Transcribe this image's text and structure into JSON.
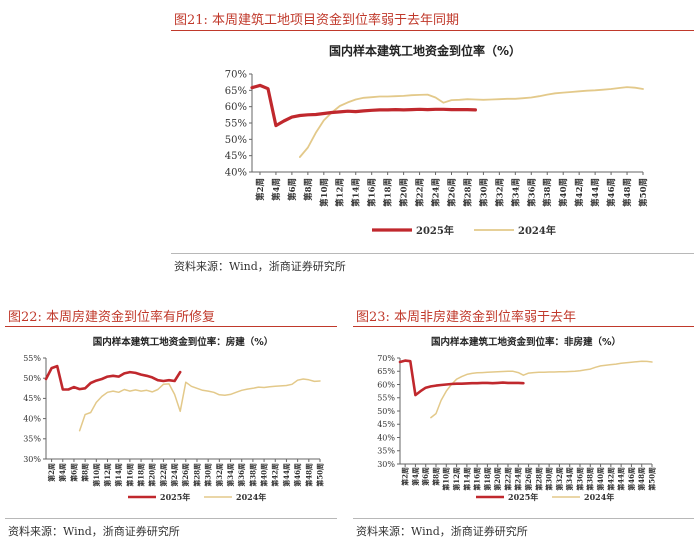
{
  "figures": [
    {
      "title": "图21:   本周建筑工地项目资金到位率弱于去年同期",
      "source": "资料来源：Wind，浙商证券研究所"
    },
    {
      "title": "图22:   本周房建资金到位率有所修复",
      "source": "资料来源：Wind，浙商证券研究所"
    },
    {
      "title": "图23:   本周非房建资金到位率弱于去年",
      "source": "资料来源：Wind，浙商证券研究所"
    }
  ],
  "colors": {
    "series_2025": "#c0282d",
    "series_2024": "#e3c98a",
    "title_red": "#c0392b"
  },
  "chart_data": [
    {
      "type": "line",
      "title": "国内样本建筑工地资金到位率（%）",
      "x": [
        "第1周",
        "第2周",
        "第3周",
        "第4周",
        "第5周",
        "第6周",
        "第7周",
        "第8周",
        "第9周",
        "第10周",
        "第11周",
        "第12周",
        "第13周",
        "第14周",
        "第15周",
        "第16周",
        "第17周",
        "第18周",
        "第19周",
        "第20周",
        "第21周",
        "第22周",
        "第23周",
        "第24周",
        "第25周",
        "第26周",
        "第27周",
        "第28周",
        "第29周",
        "第30周",
        "第31周",
        "第32周",
        "第33周",
        "第34周",
        "第35周",
        "第36周",
        "第37周",
        "第38周",
        "第39周",
        "第40周",
        "第41周",
        "第42周",
        "第43周",
        "第44周",
        "第45周",
        "第46周",
        "第47周",
        "第48周",
        "第49周",
        "第50周"
      ],
      "x_tick_labels": [
        "第2周",
        "第4周",
        "第6周",
        "第8周",
        "第10周",
        "第12周",
        "第14周",
        "第16周",
        "第18周",
        "第20周",
        "第22周",
        "第24周",
        "第26周",
        "第28周",
        "第30周",
        "第32周",
        "第34周",
        "第36周",
        "第38周",
        "第40周",
        "第42周",
        "第44周",
        "第46周",
        "第48周",
        "第50周"
      ],
      "y_ticks": [
        "40%",
        "45%",
        "50%",
        "55%",
        "60%",
        "65%",
        "70%"
      ],
      "ylim": [
        40,
        70
      ],
      "series": [
        {
          "name": "2025年",
          "values": [
            65.8,
            66.5,
            65.5,
            54.2,
            55.6,
            56.8,
            57.3,
            57.5,
            57.6,
            57.9,
            58.2,
            58.4,
            58.6,
            58.5,
            58.7,
            58.9,
            59.0,
            59.0,
            59.1,
            59.0,
            59.1,
            59.2,
            59.1,
            59.2,
            59.2,
            59.1,
            59.1,
            59.1,
            59.0,
            null,
            null,
            null,
            null,
            null,
            null,
            null,
            null,
            null,
            null,
            null,
            null,
            null,
            null,
            null,
            null,
            null,
            null,
            null,
            null,
            null
          ]
        },
        {
          "name": "2024年",
          "values": [
            null,
            null,
            null,
            null,
            null,
            null,
            44.6,
            47.5,
            52.0,
            55.8,
            58.2,
            60.2,
            61.3,
            62.2,
            62.7,
            62.9,
            63.1,
            63.1,
            63.2,
            63.3,
            63.5,
            63.6,
            63.7,
            62.8,
            61.2,
            62.0,
            62.1,
            62.3,
            62.2,
            62.1,
            62.2,
            62.3,
            62.4,
            62.4,
            62.6,
            62.8,
            63.2,
            63.7,
            64.1,
            64.3,
            64.5,
            64.7,
            64.9,
            65.0,
            65.2,
            65.4,
            65.7,
            66.0,
            65.8,
            65.4
          ]
        }
      ],
      "grid": false,
      "legend": "bottom"
    },
    {
      "type": "line",
      "title": "国内样本建筑工地资金到位率：房建（%）",
      "x": [
        "第1周",
        "第2周",
        "第3周",
        "第4周",
        "第5周",
        "第6周",
        "第7周",
        "第8周",
        "第9周",
        "第10周",
        "第11周",
        "第12周",
        "第13周",
        "第14周",
        "第15周",
        "第16周",
        "第17周",
        "第18周",
        "第19周",
        "第20周",
        "第21周",
        "第22周",
        "第23周",
        "第24周",
        "第25周",
        "第26周",
        "第27周",
        "第28周",
        "第29周",
        "第30周",
        "第31周",
        "第32周",
        "第33周",
        "第34周",
        "第35周",
        "第36周",
        "第37周",
        "第38周",
        "第39周",
        "第40周",
        "第41周",
        "第42周",
        "第43周",
        "第44周",
        "第45周",
        "第46周",
        "第47周",
        "第48周",
        "第49周",
        "第50周"
      ],
      "x_tick_labels": [
        "第2周",
        "第4周",
        "第6周",
        "第8周",
        "第10周",
        "第12周",
        "第14周",
        "第16周",
        "第18周",
        "第20周",
        "第22周",
        "第24周",
        "第26周",
        "第28周",
        "第30周",
        "第32周",
        "第34周",
        "第36周",
        "第38周",
        "第40周",
        "第42周",
        "第44周",
        "第46周",
        "第48周",
        "第50周"
      ],
      "y_ticks": [
        "30%",
        "35%",
        "40%",
        "45%",
        "50%",
        "55%"
      ],
      "ylim": [
        30,
        55
      ],
      "series": [
        {
          "name": "2025年",
          "values": [
            49.8,
            52.5,
            53.0,
            47.2,
            47.2,
            47.8,
            47.3,
            47.5,
            48.8,
            49.4,
            49.8,
            50.4,
            50.6,
            50.4,
            51.2,
            51.5,
            51.3,
            50.9,
            50.6,
            50.2,
            49.5,
            49.3,
            49.5,
            49.3,
            51.5,
            null,
            null,
            null,
            null,
            null,
            null,
            null,
            null,
            null,
            null,
            null,
            null,
            null,
            null,
            null,
            null,
            null,
            null,
            null,
            null,
            null,
            null,
            null,
            null,
            null
          ]
        },
        {
          "name": "2024年",
          "values": [
            null,
            null,
            null,
            null,
            null,
            null,
            37.0,
            41.0,
            41.5,
            44.0,
            45.5,
            46.5,
            46.8,
            46.5,
            47.2,
            46.8,
            47.1,
            46.8,
            47.0,
            46.6,
            47.2,
            48.5,
            48.6,
            46.0,
            41.8,
            49.0,
            48.0,
            47.5,
            47.0,
            46.8,
            46.5,
            45.9,
            45.8,
            46.0,
            46.5,
            47.0,
            47.3,
            47.5,
            47.8,
            47.7,
            47.9,
            48.0,
            48.1,
            48.2,
            48.5,
            49.5,
            49.8,
            49.6,
            49.2,
            49.3
          ]
        }
      ],
      "grid": false,
      "legend": "bottom"
    },
    {
      "type": "line",
      "title": "国内样本建筑工地资金到位率：非房建（%）",
      "x": [
        "第1周",
        "第2周",
        "第3周",
        "第4周",
        "第5周",
        "第6周",
        "第7周",
        "第8周",
        "第9周",
        "第10周",
        "第11周",
        "第12周",
        "第13周",
        "第14周",
        "第15周",
        "第16周",
        "第17周",
        "第18周",
        "第19周",
        "第20周",
        "第21周",
        "第22周",
        "第23周",
        "第24周",
        "第25周",
        "第26周",
        "第27周",
        "第28周",
        "第29周",
        "第30周",
        "第31周",
        "第32周",
        "第33周",
        "第34周",
        "第35周",
        "第36周",
        "第37周",
        "第38周",
        "第39周",
        "第40周",
        "第41周",
        "第42周",
        "第43周",
        "第44周",
        "第45周",
        "第46周",
        "第47周",
        "第48周",
        "第49周",
        "第50周"
      ],
      "x_tick_labels": [
        "第2周",
        "第4周",
        "第6周",
        "第8周",
        "第10周",
        "第12周",
        "第14周",
        "第16周",
        "第18周",
        "第20周",
        "第22周",
        "第24周",
        "第26周",
        "第28周",
        "第30周",
        "第32周",
        "第34周",
        "第36周",
        "第38周",
        "第40周",
        "第42周",
        "第44周",
        "第46周",
        "第48周",
        "第50周"
      ],
      "y_ticks": [
        "30%",
        "35%",
        "40%",
        "45%",
        "50%",
        "55%",
        "60%",
        "65%",
        "70%"
      ],
      "ylim": [
        30,
        70
      ],
      "series": [
        {
          "name": "2025年",
          "values": [
            68.5,
            69.0,
            68.8,
            56.0,
            57.5,
            58.8,
            59.3,
            59.6,
            59.8,
            60.0,
            60.2,
            60.3,
            60.3,
            60.4,
            60.5,
            60.5,
            60.6,
            60.6,
            60.5,
            60.6,
            60.7,
            60.6,
            60.6,
            60.6,
            60.5,
            null,
            null,
            null,
            null,
            null,
            null,
            null,
            null,
            null,
            null,
            null,
            null,
            null,
            null,
            null,
            null,
            null,
            null,
            null,
            null,
            null,
            null,
            null,
            null,
            null
          ]
        },
        {
          "name": "2024年",
          "values": [
            null,
            null,
            null,
            null,
            null,
            null,
            47.5,
            49.0,
            54.0,
            57.5,
            60.0,
            62.0,
            63.0,
            63.8,
            64.2,
            64.4,
            64.5,
            64.6,
            64.7,
            64.8,
            64.9,
            65.0,
            65.0,
            64.5,
            63.5,
            64.3,
            64.5,
            64.6,
            64.6,
            64.7,
            64.7,
            64.8,
            64.8,
            64.9,
            65.0,
            65.2,
            65.5,
            65.8,
            66.5,
            67.0,
            67.3,
            67.5,
            67.7,
            68.0,
            68.2,
            68.4,
            68.6,
            68.8,
            68.7,
            68.5
          ]
        }
      ],
      "grid": false,
      "legend": "bottom"
    }
  ]
}
